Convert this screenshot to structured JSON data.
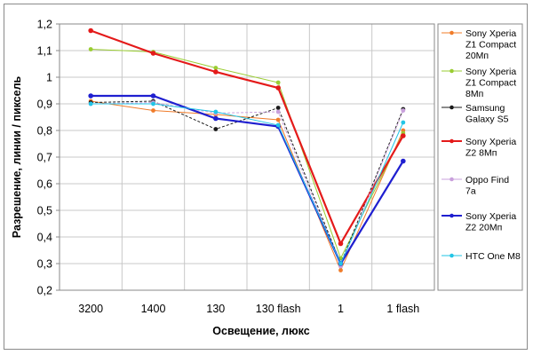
{
  "chart_data": {
    "type": "line",
    "title": "",
    "xlabel": "Освещение, люкс",
    "ylabel": "Разрешение, линии / пиксель",
    "categories": [
      "3200",
      "1400",
      "130",
      "130 flash",
      "1",
      "1 flash"
    ],
    "ylim": [
      0.2,
      1.2
    ],
    "yticks": [
      "0,2",
      "0,3",
      "0,4",
      "0,5",
      "0,6",
      "0,7",
      "0,8",
      "0,9",
      "1",
      "1,1",
      "1,2"
    ],
    "grid": true,
    "legend_position": "right",
    "series": [
      {
        "name": "Sony Xperia Z1 Compact 20Мп",
        "legend_lines": [
          "Sony Xperia",
          "Z1 Compact",
          "20Мп"
        ],
        "color": "#f07c2a",
        "values": [
          0.91,
          0.875,
          0.86,
          0.84,
          0.275,
          0.8
        ]
      },
      {
        "name": "Sony Xperia Z1 Compact 8Мп",
        "legend_lines": [
          "Sony Xperia",
          "Z1 Compact",
          "8Мп"
        ],
        "color": "#9acd32",
        "values": [
          1.105,
          1.095,
          1.035,
          0.98,
          0.32,
          0.79
        ]
      },
      {
        "name": "Samsung Galaxy S5",
        "legend_lines": [
          "Samsung",
          "Galaxy S5"
        ],
        "color": "#1a1a1a",
        "values": [
          0.905,
          0.91,
          0.805,
          0.885,
          0.3,
          0.88
        ]
      },
      {
        "name": "Sony Xperia Z2 8Мп",
        "legend_lines": [
          "Sony Xperia",
          "Z2 8Мп"
        ],
        "color": "#e41a1a",
        "values": [
          1.175,
          1.09,
          1.02,
          0.96,
          0.375,
          0.78
        ]
      },
      {
        "name": "Oppo Find 7a",
        "legend_lines": [
          "Oppo Find",
          "7a"
        ],
        "color": "#c9a0dc",
        "values": [
          0.9,
          0.905,
          0.865,
          0.87,
          0.29,
          0.875
        ]
      },
      {
        "name": "Sony Xperia Z2 20Мп",
        "legend_lines": [
          "Sony Xperia",
          "Z2 20Мп"
        ],
        "color": "#1f1fd0",
        "values": [
          0.93,
          0.93,
          0.845,
          0.815,
          0.3,
          0.685
        ]
      },
      {
        "name": "HTC One M8",
        "legend_lines": [
          "HTC One M8"
        ],
        "color": "#22c5e6",
        "values": [
          0.9,
          0.9,
          0.87,
          0.82,
          0.3,
          0.83
        ]
      }
    ]
  }
}
